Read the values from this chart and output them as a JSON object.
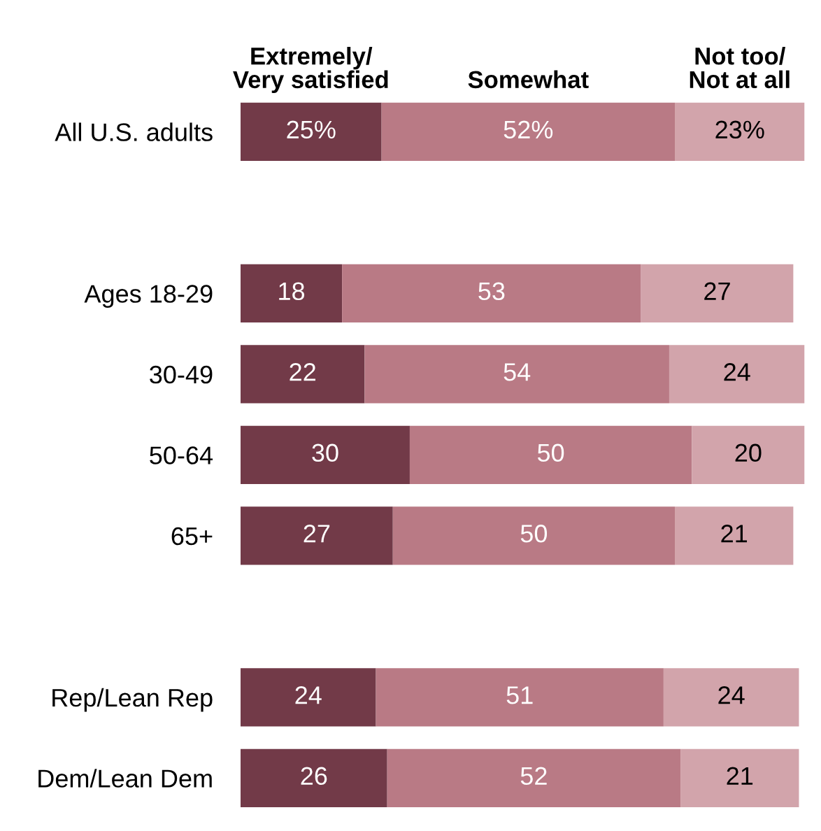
{
  "chart_data": {
    "type": "bar",
    "orientation": "horizontal",
    "stacked": true,
    "legend": "top",
    "tick_labels": "y",
    "categories": [
      "All U.S. adults",
      null,
      "Ages 18-29",
      "30-49",
      "50-64",
      "65+",
      null,
      "Rep/Lean Rep",
      "Dem/Lean Dem"
    ],
    "series": [
      {
        "name": "Extremely/\nVery satisfied",
        "color": "#723a48",
        "values": [
          25,
          null,
          18,
          22,
          30,
          27,
          null,
          24,
          26
        ],
        "value_labels": [
          "25%",
          null,
          "18",
          "22",
          "30",
          "27",
          null,
          "24",
          "26"
        ]
      },
      {
        "name": "Somewhat",
        "color": "#b97a85",
        "values": [
          52,
          null,
          53,
          54,
          50,
          50,
          null,
          51,
          52
        ],
        "value_labels": [
          "52%",
          null,
          "53",
          "54",
          "50",
          "50",
          null,
          "51",
          "52"
        ]
      },
      {
        "name": "Not too/\nNot at all",
        "color": "#d2a4ab",
        "values": [
          23,
          null,
          27,
          24,
          20,
          21,
          null,
          24,
          21
        ],
        "value_labels": [
          "23%",
          null,
          "27",
          "24",
          "20",
          "21",
          null,
          "24",
          "21"
        ]
      }
    ]
  }
}
